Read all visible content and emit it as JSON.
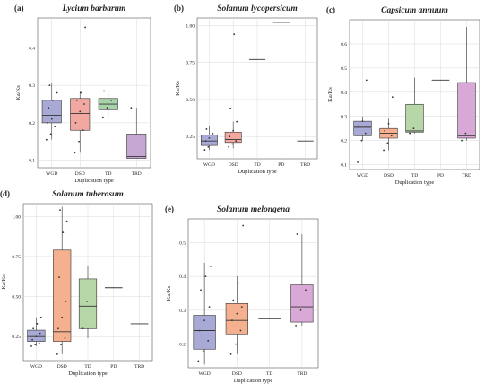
{
  "figure": {
    "background": "#ffffff"
  },
  "colors": {
    "WGD": "#a9a9d6",
    "DSD": "#f0a8a0",
    "TD": "#a8d3a8",
    "PD": "#9ec7c7",
    "TRD": "#c6a6d3",
    "DSD_alt": "#f4b08f",
    "TRD_alt": "#d8a8d6",
    "TD_alt": "#b7d7a8",
    "grid": "#d9d9d9",
    "frame": "#555555",
    "point": "#333333",
    "line": "#333333"
  },
  "chart_data": [
    {
      "type": "box",
      "label": "(a)",
      "title": "Lycium barbarum",
      "xlabel": "Duplication type",
      "ylabel": "Ka/Ks",
      "categories": [
        "WGD",
        "DSD",
        "TD",
        "TRD"
      ],
      "ylim": [
        0.08,
        0.48
      ],
      "yticks": [
        0.1,
        0.2,
        0.3,
        0.4
      ],
      "ytick_labels": [
        "0.1",
        "0.2",
        "0.3",
        "0.4"
      ],
      "boxes": [
        {
          "cat": "WGD",
          "min": 0.155,
          "q1": 0.2,
          "median": 0.22,
          "q3": 0.26,
          "max": 0.305,
          "color": "#a9a9d6",
          "points": [
            0.155,
            0.17,
            0.19,
            0.2,
            0.21,
            0.22,
            0.24,
            0.26,
            0.28,
            0.3
          ]
        },
        {
          "cat": "DSD",
          "min": 0.12,
          "q1": 0.18,
          "median": 0.225,
          "q3": 0.265,
          "max": 0.285,
          "color": "#f0a8a0",
          "points": [
            0.12,
            0.15,
            0.18,
            0.2,
            0.23,
            0.25,
            0.26,
            0.28,
            0.455
          ]
        },
        {
          "cat": "TD",
          "min": 0.215,
          "q1": 0.235,
          "median": 0.25,
          "q3": 0.265,
          "max": 0.285,
          "color": "#a8d3a8",
          "points": [
            0.215,
            0.24,
            0.26,
            0.285
          ]
        },
        {
          "cat": "TRD",
          "min": 0.105,
          "q1": 0.105,
          "median": 0.11,
          "q3": 0.17,
          "max": 0.24,
          "color": "#c6a6d3",
          "points": [
            0.24
          ]
        }
      ]
    },
    {
      "type": "box",
      "label": "(b)",
      "title": "Solanum lycopersicum",
      "xlabel": "Duplication type",
      "ylabel": "Ka/Ks",
      "categories": [
        "WGD",
        "DSD",
        "TD",
        "PD",
        "TRD"
      ],
      "ylim": [
        0.1,
        1.05
      ],
      "yticks": [
        0.25,
        0.5,
        0.75,
        1.0
      ],
      "ytick_labels": [
        "0.25",
        "0.50",
        "0.75",
        "1.00"
      ],
      "boxes": [
        {
          "cat": "WGD",
          "min": 0.16,
          "q1": 0.19,
          "median": 0.22,
          "q3": 0.26,
          "max": 0.32,
          "color": "#a9a9d6",
          "points": [
            0.16,
            0.18,
            0.2,
            0.22,
            0.24,
            0.27,
            0.3
          ]
        },
        {
          "cat": "DSD",
          "min": 0.17,
          "q1": 0.21,
          "median": 0.23,
          "q3": 0.28,
          "max": 0.35,
          "color": "#f0a8a0",
          "points": [
            0.18,
            0.2,
            0.22,
            0.25,
            0.29,
            0.35,
            0.44,
            0.94
          ]
        },
        {
          "cat": "TD",
          "min": 0.77,
          "q1": 0.77,
          "median": 0.77,
          "q3": 0.77,
          "max": 0.77,
          "color": "#a8d3a8",
          "points": []
        },
        {
          "cat": "PD",
          "min": 1.02,
          "q1": 1.02,
          "median": 1.02,
          "q3": 1.02,
          "max": 1.02,
          "color": "#9ec7c7",
          "points": []
        },
        {
          "cat": "TRD",
          "min": 0.22,
          "q1": 0.22,
          "median": 0.22,
          "q3": 0.22,
          "max": 0.22,
          "color": "#c6a6d3",
          "points": []
        }
      ]
    },
    {
      "type": "box",
      "label": "(c)",
      "title": "Capsicum annuum",
      "xlabel": "Duplication type",
      "ylabel": "Ka/Ks",
      "categories": [
        "WGD",
        "DSD",
        "TD",
        "PD",
        "TRD"
      ],
      "ylim": [
        0.08,
        0.7
      ],
      "yticks": [
        0.1,
        0.2,
        0.3,
        0.4,
        0.5,
        0.6
      ],
      "ytick_labels": [
        "0.1",
        "0.2",
        "0.3",
        "0.4",
        "0.5",
        "0.6"
      ],
      "boxes": [
        {
          "cat": "WGD",
          "min": 0.2,
          "q1": 0.22,
          "median": 0.255,
          "q3": 0.28,
          "max": 0.3,
          "color": "#a9a9d6",
          "points": [
            0.11,
            0.2,
            0.23,
            0.26,
            0.28,
            0.45
          ]
        },
        {
          "cat": "DSD",
          "min": 0.16,
          "q1": 0.21,
          "median": 0.23,
          "q3": 0.25,
          "max": 0.29,
          "color": "#f4b08f",
          "points": [
            0.16,
            0.19,
            0.22,
            0.24,
            0.27,
            0.38
          ]
        },
        {
          "cat": "TD",
          "min": 0.23,
          "q1": 0.235,
          "median": 0.24,
          "q3": 0.35,
          "max": 0.46,
          "color": "#b7d7a8",
          "points": [
            0.23,
            0.25
          ]
        },
        {
          "cat": "PD",
          "min": 0.45,
          "q1": 0.45,
          "median": 0.45,
          "q3": 0.45,
          "max": 0.45,
          "color": "#9ec7c7",
          "points": []
        },
        {
          "cat": "TRD",
          "min": 0.2,
          "q1": 0.21,
          "median": 0.22,
          "q3": 0.44,
          "max": 0.67,
          "color": "#d8a8d6",
          "points": [
            0.2,
            0.23
          ]
        }
      ]
    },
    {
      "type": "box",
      "label": "(d)",
      "title": "Solanum tuberosum",
      "xlabel": "Duplication type",
      "ylabel": "Ka/Ks",
      "categories": [
        "WGD",
        "DSD",
        "TD",
        "PD",
        "TRD"
      ],
      "ylim": [
        0.1,
        1.08
      ],
      "yticks": [
        0.25,
        0.5,
        0.75,
        1.0
      ],
      "ytick_labels": [
        "0.25",
        "0.50",
        "0.75",
        "1.00"
      ],
      "boxes": [
        {
          "cat": "WGD",
          "min": 0.19,
          "q1": 0.22,
          "median": 0.25,
          "q3": 0.29,
          "max": 0.37,
          "color": "#a9a9d6",
          "points": [
            0.19,
            0.2,
            0.21,
            0.23,
            0.25,
            0.27,
            0.3,
            0.33,
            0.37
          ]
        },
        {
          "cat": "DSD",
          "min": 0.14,
          "q1": 0.22,
          "median": 0.28,
          "q3": 0.79,
          "max": 1.06,
          "color": "#f4b08f",
          "points": [
            0.14,
            0.2,
            0.24,
            0.3,
            0.37,
            0.47,
            0.62,
            0.9,
            0.97,
            1.04
          ]
        },
        {
          "cat": "TD",
          "min": 0.24,
          "q1": 0.3,
          "median": 0.44,
          "q3": 0.61,
          "max": 0.69,
          "color": "#b7d7a8",
          "points": [
            0.3,
            0.47,
            0.64
          ]
        },
        {
          "cat": "PD",
          "min": 0.555,
          "q1": 0.555,
          "median": 0.555,
          "q3": 0.555,
          "max": 0.555,
          "color": "#9ec7c7",
          "points": []
        },
        {
          "cat": "TRD",
          "min": 0.33,
          "q1": 0.33,
          "median": 0.33,
          "q3": 0.33,
          "max": 0.33,
          "color": "#d8a8d6",
          "points": []
        }
      ]
    },
    {
      "type": "box",
      "label": "(e)",
      "title": "Solanum melongena",
      "xlabel": "Duplication type",
      "ylabel": "Ka/Ks",
      "categories": [
        "WGD",
        "DSD",
        "TD",
        "TRD"
      ],
      "ylim": [
        0.13,
        0.57
      ],
      "yticks": [
        0.2,
        0.3,
        0.4,
        0.5
      ],
      "ytick_labels": [
        "0.2",
        "0.3",
        "0.4",
        "0.5"
      ],
      "boxes": [
        {
          "cat": "WGD",
          "min": 0.14,
          "q1": 0.185,
          "median": 0.24,
          "q3": 0.285,
          "max": 0.44,
          "color": "#a9a9d6",
          "points": [
            0.15,
            0.18,
            0.21,
            0.24,
            0.27,
            0.31,
            0.36,
            0.4,
            0.43
          ]
        },
        {
          "cat": "DSD",
          "min": 0.17,
          "q1": 0.23,
          "median": 0.27,
          "q3": 0.32,
          "max": 0.4,
          "color": "#f4b08f",
          "points": [
            0.17,
            0.2,
            0.24,
            0.27,
            0.29,
            0.31,
            0.33,
            0.38,
            0.55
          ]
        },
        {
          "cat": "TD",
          "min": 0.275,
          "q1": 0.275,
          "median": 0.275,
          "q3": 0.275,
          "max": 0.275,
          "color": "#b7d7a8",
          "points": []
        },
        {
          "cat": "TRD",
          "min": 0.255,
          "q1": 0.265,
          "median": 0.31,
          "q3": 0.375,
          "max": 0.525,
          "color": "#d8a8d6",
          "points": [
            0.255,
            0.3,
            0.36,
            0.525
          ]
        }
      ]
    }
  ]
}
